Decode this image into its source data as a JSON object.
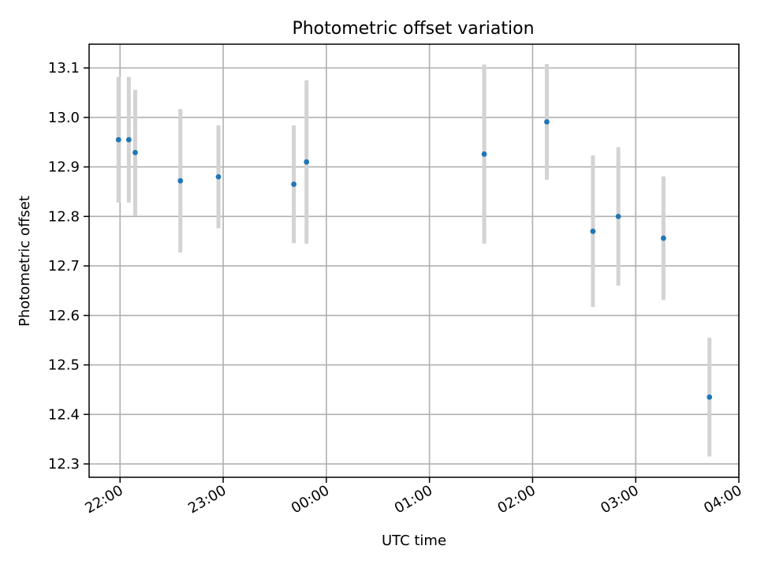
{
  "chart_data": {
    "type": "scatter",
    "title": "Photometric offset variation",
    "xlabel": "UTC time",
    "ylabel": "Photometric offset",
    "grid": true,
    "x_axis_unit": "hours relative to 00:00 UTC",
    "xlim": [
      -2.3,
      4.0
    ],
    "ylim": [
      12.273,
      13.148
    ],
    "x_ticks": [
      {
        "value": -2,
        "label": "22:00"
      },
      {
        "value": -1,
        "label": "23:00"
      },
      {
        "value": 0,
        "label": "00:00"
      },
      {
        "value": 1,
        "label": "01:00"
      },
      {
        "value": 2,
        "label": "02:00"
      },
      {
        "value": 3,
        "label": "03:00"
      },
      {
        "value": 4,
        "label": "04:00"
      }
    ],
    "y_ticks": [
      "12.3",
      "12.4",
      "12.5",
      "12.6",
      "12.7",
      "12.8",
      "12.9",
      "13.0",
      "13.1"
    ],
    "point_color": "#1f77b4",
    "errorbar_color": "#d3d3d3",
    "points": [
      {
        "time": "21:59",
        "x": -2.015,
        "y": 12.955,
        "err": 0.127
      },
      {
        "time": "22:05",
        "x": -1.915,
        "y": 12.955,
        "err": 0.127
      },
      {
        "time": "22:09",
        "x": -1.853,
        "y": 12.929,
        "err": 0.127
      },
      {
        "time": "22:35",
        "x": -1.415,
        "y": 12.872,
        "err": 0.145
      },
      {
        "time": "22:57",
        "x": -1.046,
        "y": 12.88,
        "err": 0.104
      },
      {
        "time": "23:41",
        "x": -0.315,
        "y": 12.865,
        "err": 0.119
      },
      {
        "time": "23:48",
        "x": -0.192,
        "y": 12.91,
        "err": 0.165
      },
      {
        "time": "01:32",
        "x": 1.531,
        "y": 12.926,
        "err": 0.181
      },
      {
        "time": "02:08",
        "x": 2.138,
        "y": 12.991,
        "err": 0.117
      },
      {
        "time": "02:35",
        "x": 2.585,
        "y": 12.77,
        "err": 0.153
      },
      {
        "time": "02:50",
        "x": 2.831,
        "y": 12.8,
        "err": 0.14
      },
      {
        "time": "03:16",
        "x": 3.269,
        "y": 12.756,
        "err": 0.125
      },
      {
        "time": "03:43",
        "x": 3.715,
        "y": 12.435,
        "err": 0.12
      }
    ]
  }
}
